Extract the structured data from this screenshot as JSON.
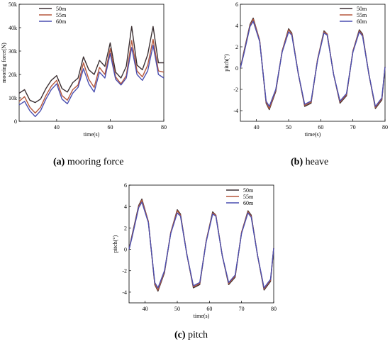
{
  "colors": {
    "50m": "#3b2f32",
    "55m": "#b5573c",
    "60m": "#4a4fb0"
  },
  "chart_data": [
    {
      "type": "line",
      "series_names": [
        "50m",
        "55m",
        "60m"
      ],
      "xlabel": "time(s)",
      "ylabel": "mooring force(N)",
      "xlim": [
        26,
        80
      ],
      "ylim": [
        0,
        50000
      ],
      "xticks": [
        "40",
        "60",
        "80"
      ],
      "yticks": [
        "0",
        "10k",
        "20k",
        "30k",
        "40k",
        "50k"
      ],
      "caption_label": "(a)",
      "caption_text": " mooring force",
      "series": [
        {
          "name": "50m",
          "x": [
            26,
            28,
            30,
            32,
            34,
            36,
            38,
            40,
            42,
            44,
            46,
            48,
            50,
            52,
            54,
            56,
            58,
            60,
            62,
            64,
            66,
            68,
            70,
            72,
            74,
            76,
            78,
            80
          ],
          "values": [
            12000,
            13500,
            9000,
            8000,
            9500,
            14000,
            17500,
            19500,
            14000,
            12500,
            16500,
            18500,
            27500,
            22000,
            20000,
            26000,
            23500,
            33500,
            21000,
            18500,
            23500,
            40500,
            24000,
            22000,
            28500,
            40500,
            25000,
            25000
          ]
        },
        {
          "name": "55m",
          "x": [
            26,
            28,
            30,
            32,
            34,
            36,
            38,
            40,
            42,
            44,
            46,
            48,
            50,
            52,
            54,
            56,
            58,
            60,
            62,
            64,
            66,
            68,
            70,
            72,
            74,
            76,
            78,
            80
          ],
          "values": [
            8500,
            10500,
            6000,
            3500,
            6000,
            11000,
            15000,
            17500,
            11000,
            9000,
            13500,
            15500,
            25000,
            18000,
            14500,
            23000,
            20000,
            31000,
            19000,
            16000,
            19500,
            34500,
            21500,
            19000,
            24000,
            35000,
            21500,
            21000
          ]
        },
        {
          "name": "60m",
          "x": [
            26,
            28,
            30,
            32,
            34,
            36,
            38,
            40,
            42,
            44,
            46,
            48,
            50,
            52,
            54,
            56,
            58,
            60,
            62,
            64,
            66,
            68,
            70,
            72,
            74,
            76,
            78,
            80
          ],
          "values": [
            7000,
            8500,
            4500,
            2000,
            4500,
            9500,
            13500,
            16000,
            9500,
            7500,
            12000,
            14500,
            22500,
            16000,
            12500,
            21000,
            18500,
            29000,
            18000,
            15500,
            18500,
            31500,
            20000,
            17500,
            21500,
            32500,
            20000,
            18500
          ]
        }
      ]
    },
    {
      "type": "line",
      "series_names": [
        "50m",
        "55m",
        "60m"
      ],
      "xlabel": "time(s)",
      "ylabel": "pitch(°)",
      "xlim": [
        35,
        80
      ],
      "ylim": [
        -5,
        6
      ],
      "xticks": [
        "40",
        "50",
        "60",
        "70",
        "80"
      ],
      "yticks": [
        "-4",
        "-2",
        "0",
        "2",
        "4",
        "6"
      ],
      "caption_label": "(b)",
      "caption_text": " heave",
      "series": [
        {
          "name": "50m",
          "x": [
            35,
            36,
            38,
            39,
            41,
            43,
            44,
            46,
            48,
            50,
            51,
            53,
            55,
            57,
            59,
            61,
            62,
            64,
            66,
            68,
            70,
            72,
            73,
            75,
            77,
            79,
            80
          ],
          "values": [
            0,
            1.4,
            4.1,
            4.7,
            2.6,
            -3.3,
            -3.9,
            -2.2,
            1.6,
            3.7,
            3.3,
            -0.5,
            -3.6,
            -3.3,
            0.8,
            3.5,
            3.2,
            -0.6,
            -3.3,
            -2.6,
            1.6,
            3.6,
            3.2,
            -0.6,
            -3.8,
            -3.0,
            0.1
          ]
        },
        {
          "name": "55m",
          "x": [
            35,
            36,
            38,
            39,
            41,
            43,
            44,
            46,
            48,
            50,
            51,
            53,
            55,
            57,
            59,
            61,
            62,
            64,
            66,
            68,
            70,
            72,
            73,
            75,
            77,
            79,
            80
          ],
          "values": [
            0,
            1.3,
            4.0,
            4.6,
            2.6,
            -3.2,
            -3.8,
            -2.1,
            1.6,
            3.6,
            3.2,
            -0.5,
            -3.5,
            -3.2,
            0.8,
            3.4,
            3.2,
            -0.6,
            -3.2,
            -2.5,
            1.6,
            3.5,
            3.1,
            -0.6,
            -3.7,
            -2.9,
            0.1
          ]
        },
        {
          "name": "60m",
          "x": [
            35,
            36,
            38,
            39,
            41,
            43,
            44,
            46,
            48,
            50,
            51,
            53,
            55,
            57,
            59,
            61,
            62,
            64,
            66,
            68,
            70,
            72,
            73,
            75,
            77,
            79,
            80
          ],
          "values": [
            0,
            1.2,
            3.9,
            4.4,
            2.5,
            -3.1,
            -3.6,
            -2.0,
            1.5,
            3.4,
            3.1,
            -0.5,
            -3.4,
            -3.1,
            0.7,
            3.3,
            3.1,
            -0.6,
            -3.1,
            -2.4,
            1.5,
            3.4,
            3.0,
            -0.6,
            -3.6,
            -2.8,
            0.1
          ]
        }
      ]
    },
    {
      "type": "line",
      "series_names": [
        "50m",
        "55m",
        "60m"
      ],
      "xlabel": "time(s)",
      "ylabel": "pitch(°)",
      "xlim": [
        35,
        80
      ],
      "ylim": [
        -5,
        6
      ],
      "xticks": [
        "40",
        "50",
        "60",
        "70",
        "80"
      ],
      "yticks": [
        "-4",
        "-2",
        "0",
        "2",
        "4",
        "6"
      ],
      "caption_label": "(c)",
      "caption_text": " pitch",
      "series": [
        {
          "name": "50m",
          "x": [
            35,
            36,
            38,
            39,
            41,
            43,
            44,
            46,
            48,
            50,
            51,
            53,
            55,
            57,
            59,
            61,
            62,
            64,
            66,
            68,
            70,
            72,
            73,
            75,
            77,
            79,
            80
          ],
          "values": [
            0,
            1.4,
            4.1,
            4.7,
            2.6,
            -3.3,
            -3.9,
            -2.2,
            1.6,
            3.7,
            3.3,
            -0.5,
            -3.6,
            -3.3,
            0.8,
            3.5,
            3.2,
            -0.6,
            -3.3,
            -2.6,
            1.6,
            3.6,
            3.2,
            -0.6,
            -3.8,
            -3.0,
            0.1
          ]
        },
        {
          "name": "55m",
          "x": [
            35,
            36,
            38,
            39,
            41,
            43,
            44,
            46,
            48,
            50,
            51,
            53,
            55,
            57,
            59,
            61,
            62,
            64,
            66,
            68,
            70,
            72,
            73,
            75,
            77,
            79,
            80
          ],
          "values": [
            0,
            1.3,
            4.0,
            4.6,
            2.6,
            -3.2,
            -3.8,
            -2.1,
            1.6,
            3.6,
            3.2,
            -0.5,
            -3.5,
            -3.2,
            0.8,
            3.4,
            3.2,
            -0.6,
            -3.2,
            -2.5,
            1.6,
            3.5,
            3.1,
            -0.6,
            -3.7,
            -2.9,
            0.1
          ]
        },
        {
          "name": "60m",
          "x": [
            35,
            36,
            38,
            39,
            41,
            43,
            44,
            46,
            48,
            50,
            51,
            53,
            55,
            57,
            59,
            61,
            62,
            64,
            66,
            68,
            70,
            72,
            73,
            75,
            77,
            79,
            80
          ],
          "values": [
            0,
            1.2,
            3.9,
            4.4,
            2.5,
            -3.1,
            -3.6,
            -2.0,
            1.5,
            3.4,
            3.1,
            -0.5,
            -3.4,
            -3.1,
            0.7,
            3.3,
            3.1,
            -0.6,
            -3.1,
            -2.4,
            1.5,
            3.4,
            3.0,
            -0.6,
            -3.6,
            -2.8,
            0.1
          ]
        }
      ]
    }
  ]
}
